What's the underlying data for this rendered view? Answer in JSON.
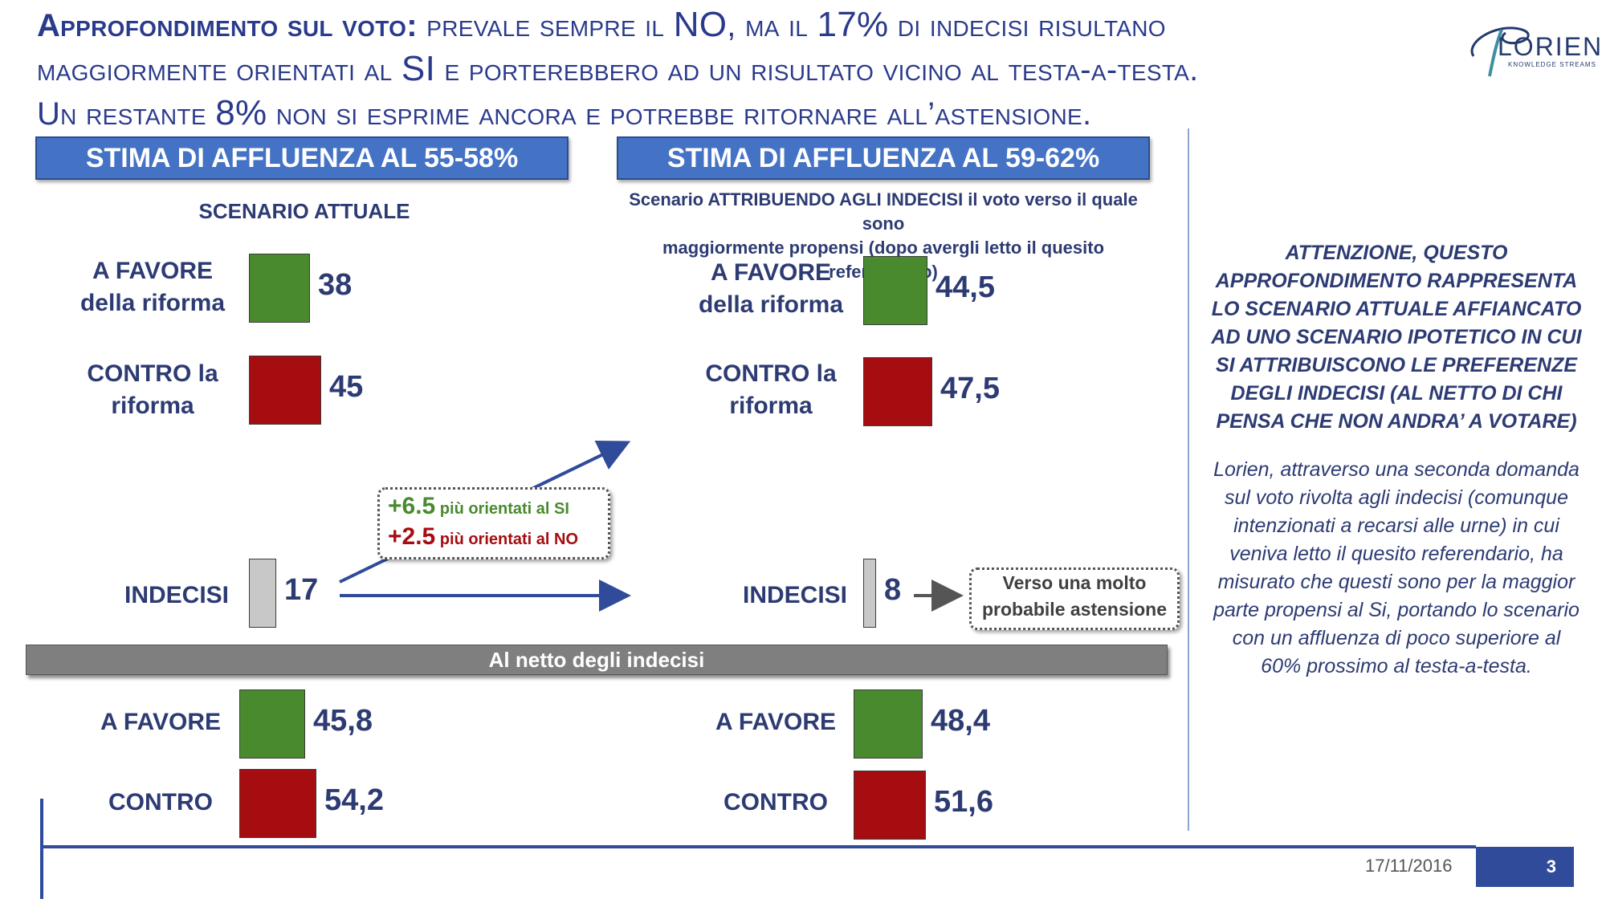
{
  "header": {
    "title_part1_bold": "Approfondimento sul voto:",
    "title_part1_rest": " prevale sempre il ",
    "title_no": "NO",
    "title_mid1": ", ma il ",
    "title_pct17": "17%",
    "title_mid2": " di indecisi risultano",
    "title_line2_a": "maggiormente orientati al ",
    "title_si": "SI",
    "title_line2_b": " e porterebbero ad un risultato vicino al testa-a-testa.",
    "title_line3_a": "Un restante ",
    "title_pct8": "8%",
    "title_line3_b": " non si esprime ancora e potrebbe ritornare all’astensione."
  },
  "logo": {
    "name": "LORIEN",
    "tagline": "KNOWLEDGE STREAMS"
  },
  "left": {
    "header": "STIMA DI AFFLUENZA AL 55-58%",
    "subtitle": "SCENARIO ATTUALE",
    "favore_label_1": "A FAVORE",
    "favore_label_2": "della riforma",
    "contro_label_1": "CONTRO la",
    "contro_label_2": "riforma",
    "indecisi_label": "INDECISI"
  },
  "right": {
    "header": "STIMA DI AFFLUENZA AL 59-62%",
    "subtitle_line1": "Scenario ATTRIBUENDO AGLI INDECISI il voto verso il quale sono",
    "subtitle_line2": "maggiormente propensi (dopo avergli letto il quesito referendario)",
    "favore_label_1": "A FAVORE",
    "favore_label_2": "della riforma",
    "contro_label_1": "CONTRO la",
    "contro_label_2": "riforma",
    "indecisi_label": "INDECISI"
  },
  "callout": {
    "si_num": "+6.5",
    "si_text": " più orientati al SI",
    "no_num": "+2.5",
    "no_text": " più orientati al NO"
  },
  "astensione": {
    "line1": "Verso una molto",
    "line2": "probabile astensione"
  },
  "netto": {
    "label": "Al netto degli indecisi",
    "favore_label": "A FAVORE",
    "contro_label": "CONTRO"
  },
  "note": {
    "bold": "ATTENZIONE, QUESTO APPROFONDIMENTO RAPPRESENTA LO SCENARIO ATTUALE AFFIANCATO AD UNO SCENARIO IPOTETICO IN CUI SI ATTRIBUISCONO LE PREFERENZE DEGLI INDECISI (AL NETTO DI CHI PENSA CHE NON ANDRA’  A VOTARE)",
    "body": "Lorien, attraverso una seconda domanda sul voto rivolta agli indecisi (comunque intenzionati a recarsi alle urne) in cui veniva letto il quesito referendario, ha misurato che questi sono per la maggior parte propensi al Si, portando lo scenario con un affluenza di poco superiore al 60% prossimo al testa-a-testa."
  },
  "footer": {
    "date": "17/11/2016",
    "page": "3"
  },
  "colors": {
    "favore": "#4a8a2f",
    "contro": "#a50d10",
    "indecisi": "#c8c8c8",
    "accent": "#4472c4"
  },
  "chart_data": [
    {
      "type": "bar",
      "categories": [
        "A FAVORE della riforma",
        "CONTRO la riforma",
        "INDECISI"
      ],
      "values": [
        38,
        45,
        17
      ],
      "value_labels": [
        "38",
        "45",
        "17"
      ],
      "title": "SCENARIO ATTUALE"
    },
    {
      "type": "bar",
      "categories": [
        "A FAVORE della riforma",
        "CONTRO la riforma",
        "INDECISI"
      ],
      "values": [
        44.5,
        47.5,
        8
      ],
      "value_labels": [
        "44,5",
        "47,5",
        "8"
      ],
      "title": "Scenario ATTRIBUENDO AGLI INDECISI il voto verso il quale sono maggiormente propensi (dopo avergli letto il quesito referendario)"
    },
    {
      "type": "bar",
      "categories": [
        "A FAVORE",
        "CONTRO"
      ],
      "values": [
        45.8,
        54.2
      ],
      "value_labels": [
        "45,8",
        "54,2"
      ],
      "title": "Al netto degli indecisi"
    },
    {
      "type": "bar",
      "categories": [
        "A FAVORE",
        "CONTRO"
      ],
      "values": [
        48.4,
        51.6
      ],
      "value_labels": [
        "48,4",
        "51,6"
      ],
      "title": "Al netto degli indecisi"
    }
  ]
}
